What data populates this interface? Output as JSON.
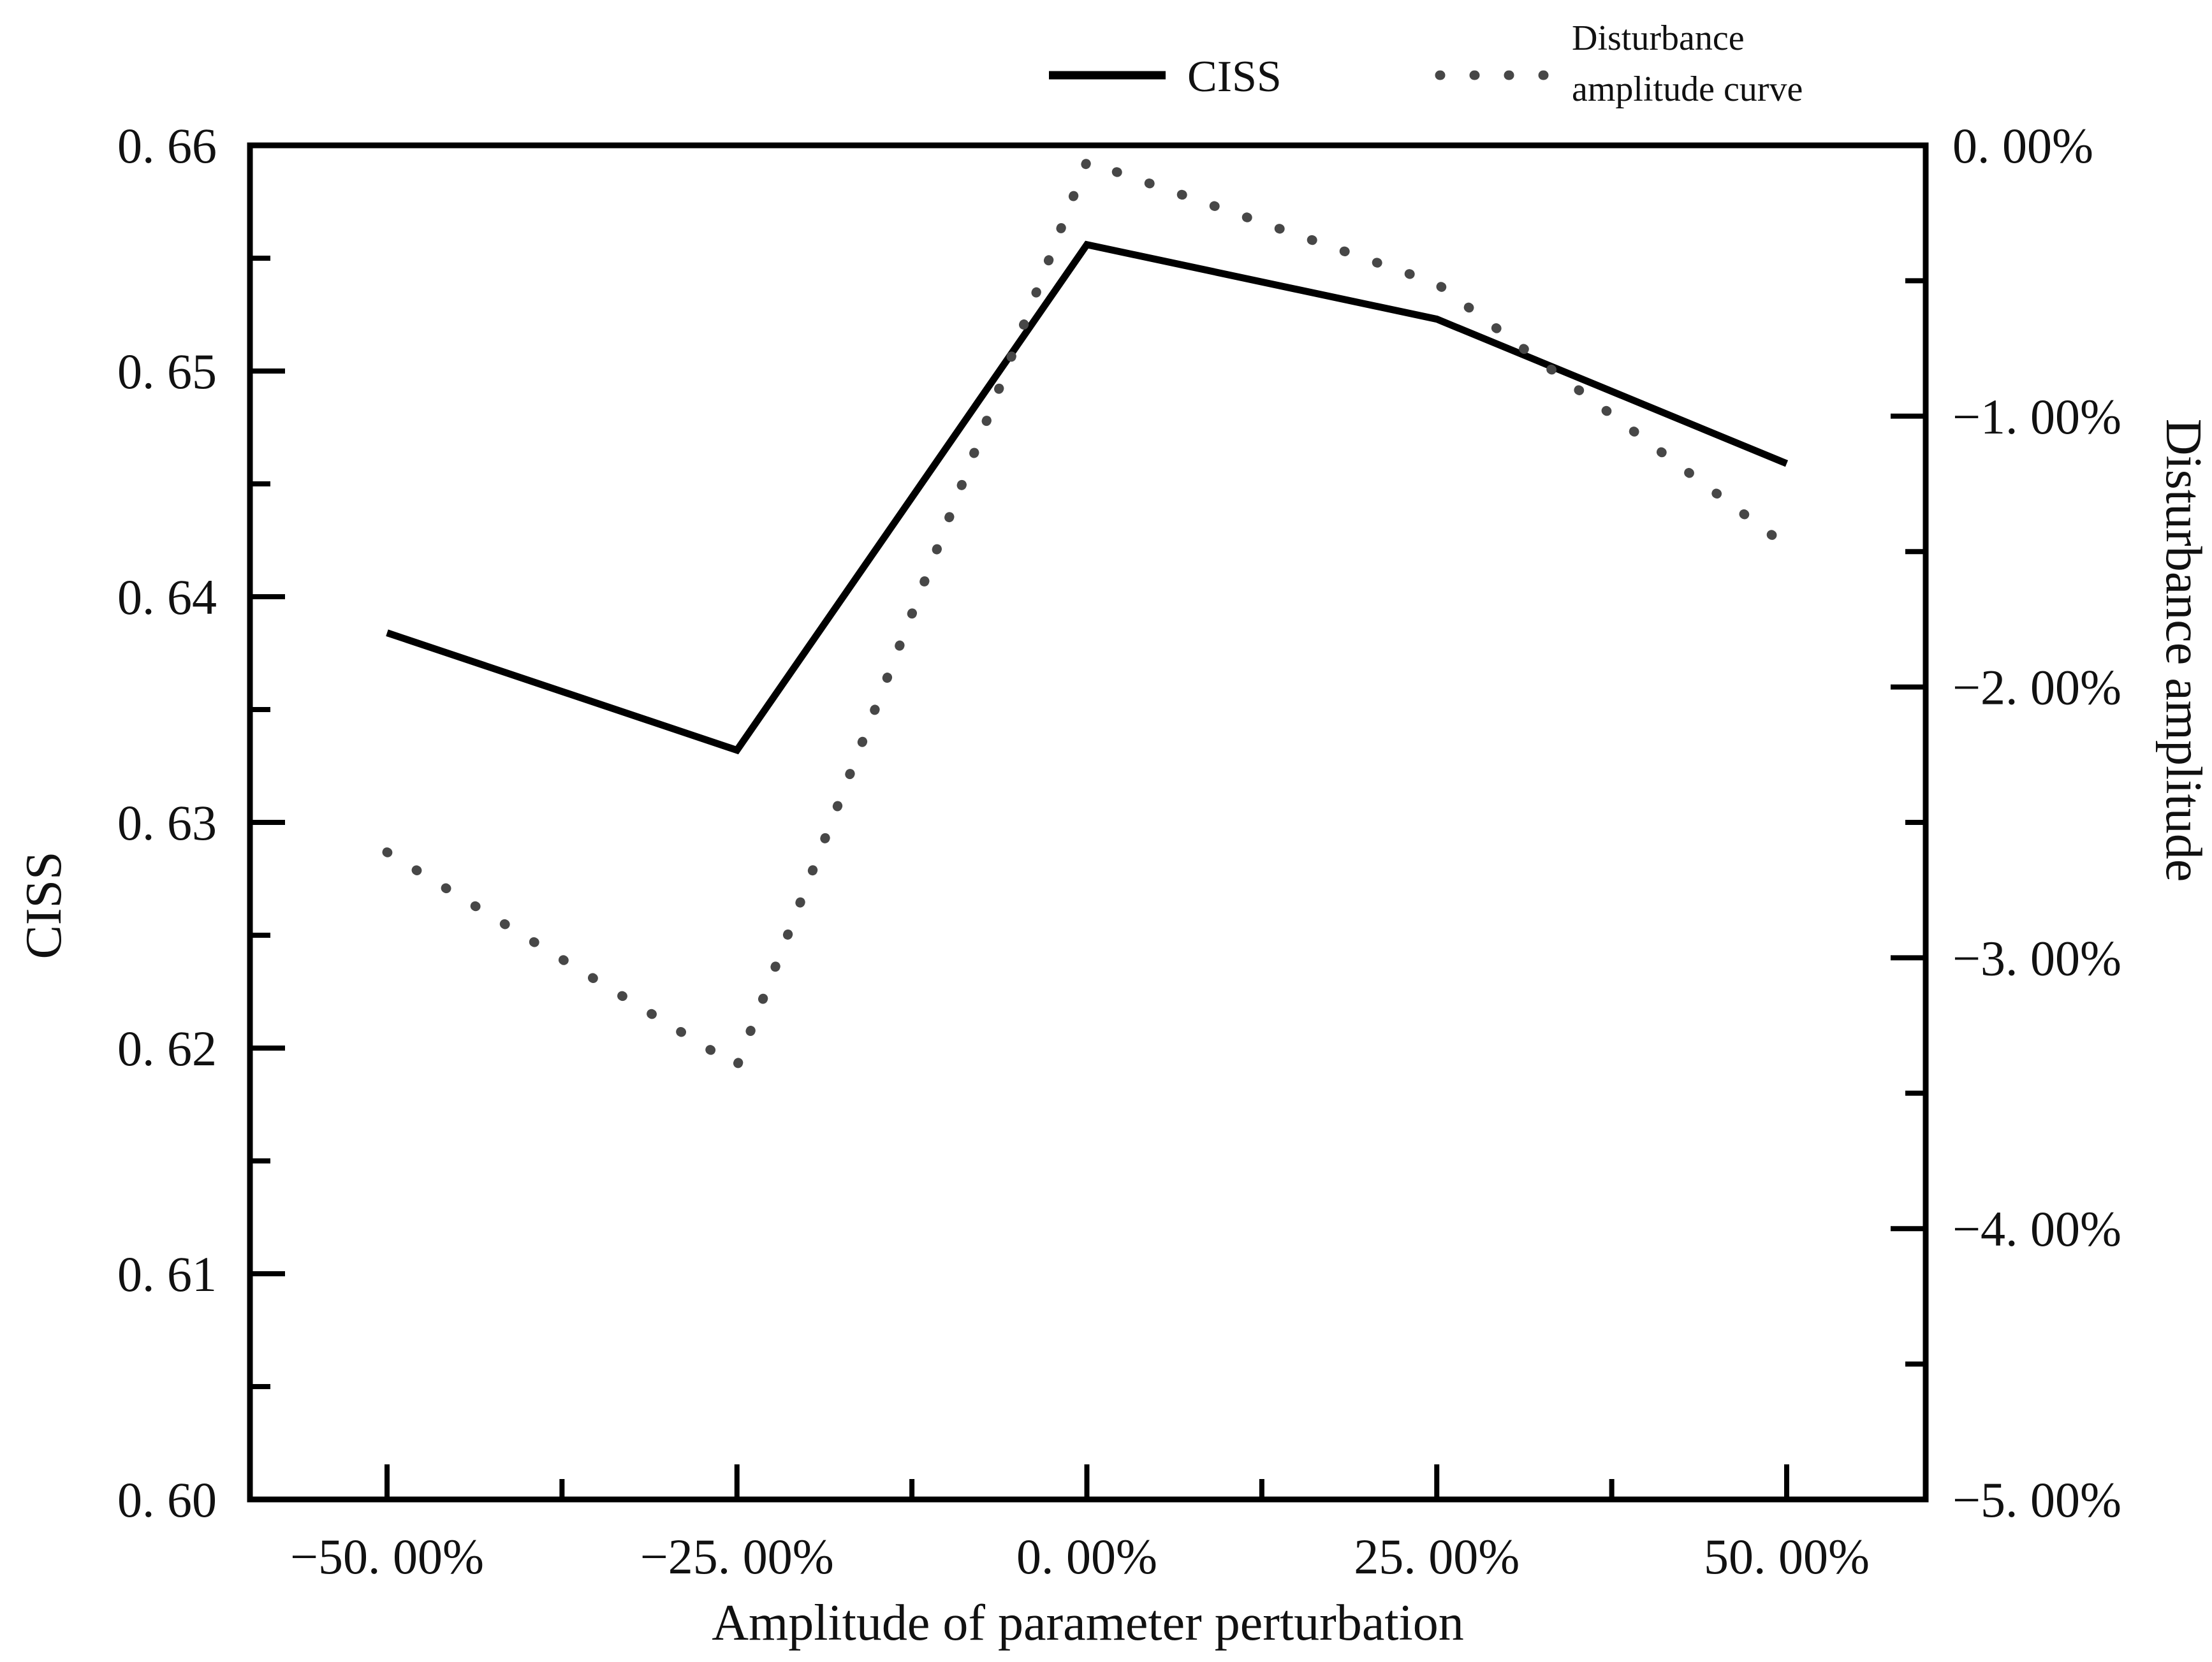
{
  "figure": {
    "background": "#ffffff",
    "solid_line_color": "#000000",
    "dotted_line_color": "#474747",
    "axis_color": "#000000"
  },
  "legend": {
    "ciss_label": "CISS",
    "disturbance_label_line1": "Disturbance",
    "disturbance_label_line2": "amplitude curve"
  },
  "axes": {
    "x_title": "Amplitude of parameter perturbation",
    "y_left_title": "CISS",
    "y_right_title": "Disturbance amplitude"
  },
  "chart_data": {
    "type": "line",
    "title": "",
    "x": [
      -50,
      -25,
      0,
      25,
      50
    ],
    "x_tick_labels": [
      "−50. 00%",
      "−25. 00%",
      "0. 00%",
      "25. 00%",
      "50. 00%"
    ],
    "x_minor_ticks": [
      -37.5,
      -12.5,
      12.5,
      37.5
    ],
    "xlabel": "Amplitude of parameter perturbation",
    "series": [
      {
        "name": "CISS",
        "axis": "left",
        "style": "solid",
        "values": [
          0.6384,
          0.6332,
          0.6556,
          0.6523,
          0.6459
        ]
      },
      {
        "name": "Disturbance amplitude curve",
        "axis": "right",
        "style": "dotted",
        "values": [
          -2.61,
          -3.4,
          -0.06,
          -0.51,
          -1.48
        ]
      }
    ],
    "y_left": {
      "label": "CISS",
      "min": 0.6,
      "max": 0.66,
      "major_step": 0.01,
      "minor_step": 0.005,
      "tick_values": [
        0.6,
        0.61,
        0.62,
        0.63,
        0.64,
        0.65,
        0.66
      ],
      "tick_labels": [
        "0. 60",
        "0. 61",
        "0. 62",
        "0. 63",
        "0. 64",
        "0. 65",
        "0. 66"
      ]
    },
    "y_right": {
      "label": "Disturbance amplitude",
      "min": -5.0,
      "max": 0.0,
      "major_step": 1.0,
      "minor_step": 0.5,
      "tick_values": [
        0,
        -1,
        -2,
        -3,
        -4,
        -5
      ],
      "tick_labels": [
        "0. 00%",
        "−1. 00%",
        "−2. 00%",
        "−3. 00%",
        "−4. 00%",
        "−5. 00%"
      ]
    },
    "legend_position": "top",
    "grid": false
  }
}
